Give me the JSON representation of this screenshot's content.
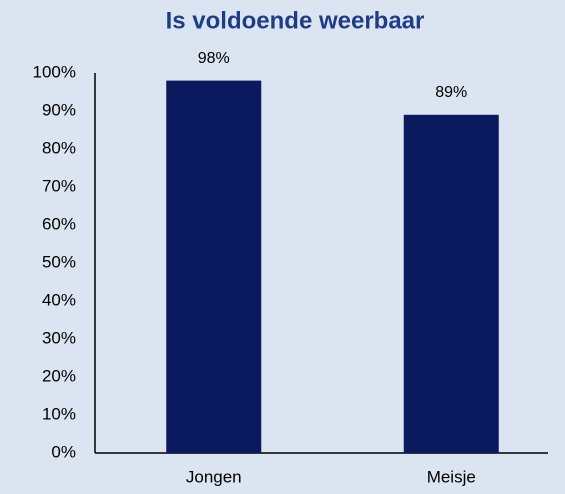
{
  "chart_data": {
    "type": "bar",
    "title": "Is voldoende weerbaar",
    "categories": [
      "Jongen",
      "Meisje"
    ],
    "values": [
      98,
      89
    ],
    "value_labels": [
      "98%",
      "89%"
    ],
    "color": "#0b1a5e",
    "ylim": [
      0,
      100
    ],
    "yticks": [
      {
        "value": 0,
        "label": "0%"
      },
      {
        "value": 10,
        "label": "10%"
      },
      {
        "value": 20,
        "label": "20%"
      },
      {
        "value": 30,
        "label": "30%"
      },
      {
        "value": 40,
        "label": "40%"
      },
      {
        "value": 50,
        "label": "50%"
      },
      {
        "value": 60,
        "label": "60%"
      },
      {
        "value": 70,
        "label": "70%"
      },
      {
        "value": 80,
        "label": "80%"
      },
      {
        "value": 90,
        "label": "90%"
      },
      {
        "value": 100,
        "label": "100%"
      }
    ],
    "grid": false
  }
}
